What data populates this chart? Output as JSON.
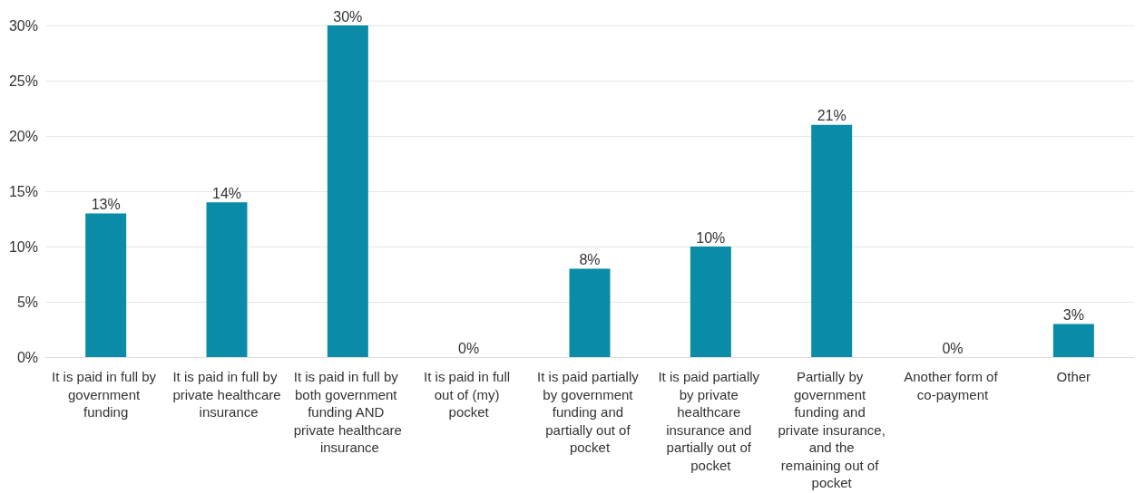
{
  "chart_data": {
    "type": "bar",
    "categories": [
      "It is paid in full by government funding",
      "It is paid in full by private healthcare insurance",
      "It is paid in full by both government funding AND private healthcare insurance",
      "It is paid in full out of (my) pocket",
      "It is paid partially by government funding and partially out of pocket",
      "It is paid partially by private healthcare insurance and partially out of pocket",
      "Partially by government funding and private insurance, and the remaining out of pocket",
      "Another form of co-payment",
      "Other"
    ],
    "values": [
      13,
      14,
      30,
      0,
      8,
      10,
      21,
      0,
      3
    ],
    "value_labels": [
      "13%",
      "14%",
      "30%",
      "0%",
      "8%",
      "10%",
      "21%",
      "0%",
      "3%"
    ],
    "color": "#0a8ca8",
    "ylim": [
      0,
      30
    ],
    "yticks": [
      {
        "value": 0,
        "label": "0%"
      },
      {
        "value": 5,
        "label": "5%"
      },
      {
        "value": 10,
        "label": "10%"
      },
      {
        "value": 15,
        "label": "15%"
      },
      {
        "value": 20,
        "label": "20%"
      },
      {
        "value": 25,
        "label": "25%"
      },
      {
        "value": 30,
        "label": "30%"
      }
    ],
    "grid": "y"
  }
}
